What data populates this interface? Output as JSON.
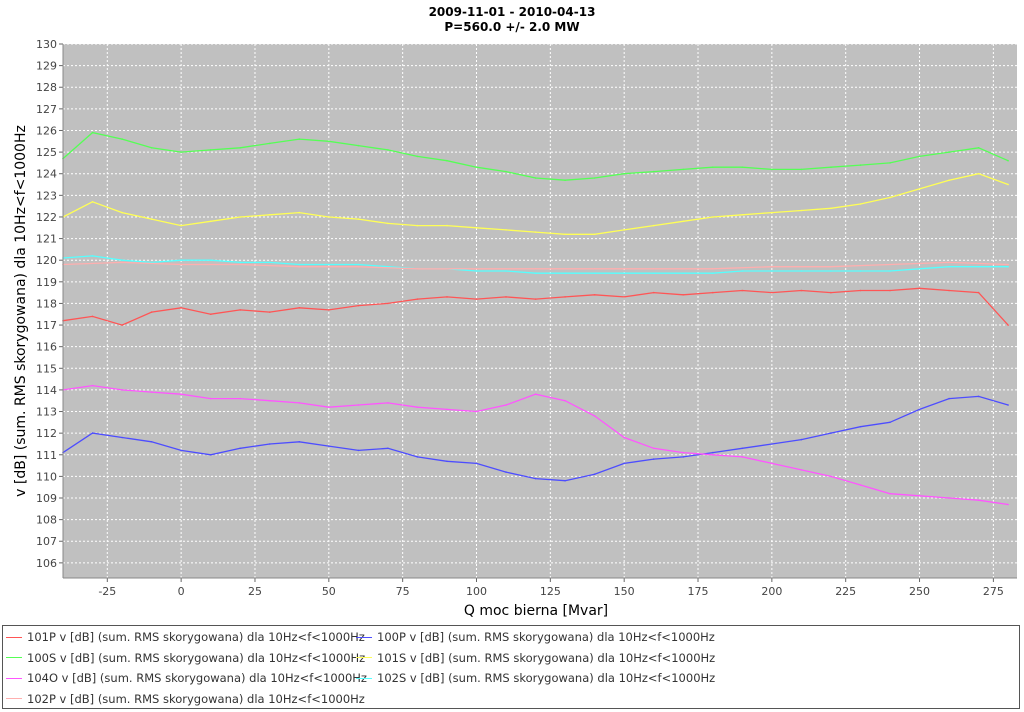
{
  "chart_data": {
    "type": "line",
    "title": "2009-11-01 - 2010-04-13",
    "subtitle": "P=560.0 +/- 2.0 MW",
    "xlabel": "Q moc bierna [Mvar]",
    "ylabel": "v [dB] (sum. RMS skorygowana) dla 10Hz<f<1000Hz",
    "xlim": [
      -40,
      283
    ],
    "ylim": [
      105.3,
      130
    ],
    "x_ticks": [
      -25,
      0,
      25,
      50,
      75,
      100,
      125,
      150,
      175,
      200,
      225,
      250,
      275
    ],
    "y_ticks": [
      106,
      107,
      108,
      109,
      110,
      111,
      112,
      113,
      114,
      115,
      116,
      117,
      118,
      119,
      120,
      121,
      122,
      123,
      124,
      125,
      126,
      127,
      128,
      129,
      130
    ],
    "grid": true,
    "legend_position": "bottom",
    "series": [
      {
        "name": "101P v [dB] (sum. RMS skorygowana) dla 10Hz<f<1000Hz",
        "color": "#ff5555",
        "x": [
          -40,
          -30,
          -20,
          -10,
          0,
          10,
          20,
          30,
          40,
          50,
          60,
          70,
          80,
          90,
          100,
          110,
          120,
          130,
          140,
          150,
          160,
          170,
          180,
          190,
          200,
          210,
          220,
          230,
          240,
          250,
          260,
          270,
          280
        ],
        "y": [
          117.2,
          117.4,
          117.0,
          117.6,
          117.8,
          117.5,
          117.7,
          117.6,
          117.8,
          117.7,
          117.9,
          118.0,
          118.2,
          118.3,
          118.2,
          118.3,
          118.2,
          118.3,
          118.4,
          118.3,
          118.5,
          118.4,
          118.5,
          118.6,
          118.5,
          118.6,
          118.5,
          118.6,
          118.6,
          118.7,
          118.6,
          118.5,
          117.0
        ]
      },
      {
        "name": "100P v [dB] (sum. RMS skorygowana) dla 10Hz<f<1000Hz",
        "color": "#4d4dff",
        "x": [
          -40,
          -30,
          -20,
          -10,
          0,
          10,
          20,
          30,
          40,
          50,
          60,
          70,
          80,
          90,
          100,
          110,
          120,
          130,
          140,
          150,
          160,
          170,
          180,
          190,
          200,
          210,
          220,
          230,
          240,
          250,
          260,
          270,
          280
        ],
        "y": [
          111.1,
          112.0,
          111.8,
          111.6,
          111.2,
          111.0,
          111.3,
          111.5,
          111.6,
          111.4,
          111.2,
          111.3,
          110.9,
          110.7,
          110.6,
          110.2,
          109.9,
          109.8,
          110.1,
          110.6,
          110.8,
          110.9,
          111.1,
          111.3,
          111.5,
          111.7,
          112.0,
          112.3,
          112.5,
          113.1,
          113.6,
          113.7,
          113.3
        ]
      },
      {
        "name": "100S v [dB] (sum. RMS skorygowana) dla 10Hz<f<1000Hz",
        "color": "#55ff55",
        "x": [
          -40,
          -30,
          -20,
          -10,
          0,
          10,
          20,
          30,
          40,
          50,
          60,
          70,
          80,
          90,
          100,
          110,
          120,
          130,
          140,
          150,
          160,
          170,
          180,
          190,
          200,
          210,
          220,
          230,
          240,
          250,
          260,
          270,
          280
        ],
        "y": [
          124.7,
          125.9,
          125.6,
          125.2,
          125.0,
          125.1,
          125.2,
          125.4,
          125.6,
          125.5,
          125.3,
          125.1,
          124.8,
          124.6,
          124.3,
          124.1,
          123.8,
          123.7,
          123.8,
          124.0,
          124.1,
          124.2,
          124.3,
          124.3,
          124.2,
          124.2,
          124.3,
          124.4,
          124.5,
          124.8,
          125.0,
          125.2,
          124.6
        ]
      },
      {
        "name": "101S v [dB] (sum. RMS skorygowana) dla 10Hz<f<1000Hz",
        "color": "#ffff55",
        "x": [
          -40,
          -30,
          -20,
          -10,
          0,
          10,
          20,
          30,
          40,
          50,
          60,
          70,
          80,
          90,
          100,
          110,
          120,
          130,
          140,
          150,
          160,
          170,
          180,
          190,
          200,
          210,
          220,
          230,
          240,
          250,
          260,
          270,
          280
        ],
        "y": [
          122.0,
          122.7,
          122.2,
          121.9,
          121.6,
          121.8,
          122.0,
          122.1,
          122.2,
          122.0,
          121.9,
          121.7,
          121.6,
          121.6,
          121.5,
          121.4,
          121.3,
          121.2,
          121.2,
          121.4,
          121.6,
          121.8,
          122.0,
          122.1,
          122.2,
          122.3,
          122.4,
          122.6,
          122.9,
          123.3,
          123.7,
          124.0,
          123.5
        ]
      },
      {
        "name": "104O v [dB] (sum. RMS skorygowana) dla 10Hz<f<1000Hz",
        "color": "#ff55ff",
        "x": [
          -40,
          -30,
          -20,
          -10,
          0,
          10,
          20,
          30,
          40,
          50,
          60,
          70,
          80,
          90,
          100,
          110,
          120,
          130,
          140,
          150,
          160,
          170,
          180,
          190,
          200,
          210,
          220,
          230,
          240,
          250,
          260,
          270,
          280
        ],
        "y": [
          114.0,
          114.2,
          114.0,
          113.9,
          113.8,
          113.6,
          113.6,
          113.5,
          113.4,
          113.2,
          113.3,
          113.4,
          113.2,
          113.1,
          113.0,
          113.3,
          113.8,
          113.5,
          112.8,
          111.8,
          111.3,
          111.1,
          111.0,
          110.9,
          110.6,
          110.3,
          110.0,
          109.6,
          109.2,
          109.1,
          109.0,
          108.9,
          108.7
        ]
      },
      {
        "name": "102S v [dB] (sum. RMS skorygowana) dla 10Hz<f<1000Hz",
        "color": "#55ffff",
        "x": [
          -40,
          -30,
          -20,
          -10,
          0,
          10,
          20,
          30,
          40,
          50,
          60,
          70,
          80,
          90,
          100,
          110,
          120,
          130,
          140,
          150,
          160,
          170,
          180,
          190,
          200,
          210,
          220,
          230,
          240,
          250,
          260,
          270,
          280
        ],
        "y": [
          120.1,
          120.2,
          120.0,
          119.9,
          120.0,
          120.0,
          119.9,
          119.9,
          119.8,
          119.8,
          119.8,
          119.7,
          119.6,
          119.6,
          119.5,
          119.5,
          119.4,
          119.4,
          119.4,
          119.4,
          119.4,
          119.4,
          119.4,
          119.5,
          119.5,
          119.5,
          119.5,
          119.5,
          119.5,
          119.6,
          119.7,
          119.7,
          119.7
        ]
      },
      {
        "name": "102P v [dB] (sum. RMS skorygowana) dla 10Hz<f<1000Hz",
        "color": "#ffafaf",
        "x": [
          -40,
          -20,
          0,
          20,
          40,
          60,
          80,
          100,
          120,
          140,
          160,
          180,
          200,
          220,
          240,
          260,
          280
        ],
        "y": [
          119.8,
          119.9,
          119.8,
          119.8,
          119.7,
          119.7,
          119.6,
          119.6,
          119.6,
          119.6,
          119.6,
          119.6,
          119.7,
          119.7,
          119.8,
          119.9,
          119.8
        ]
      }
    ]
  }
}
